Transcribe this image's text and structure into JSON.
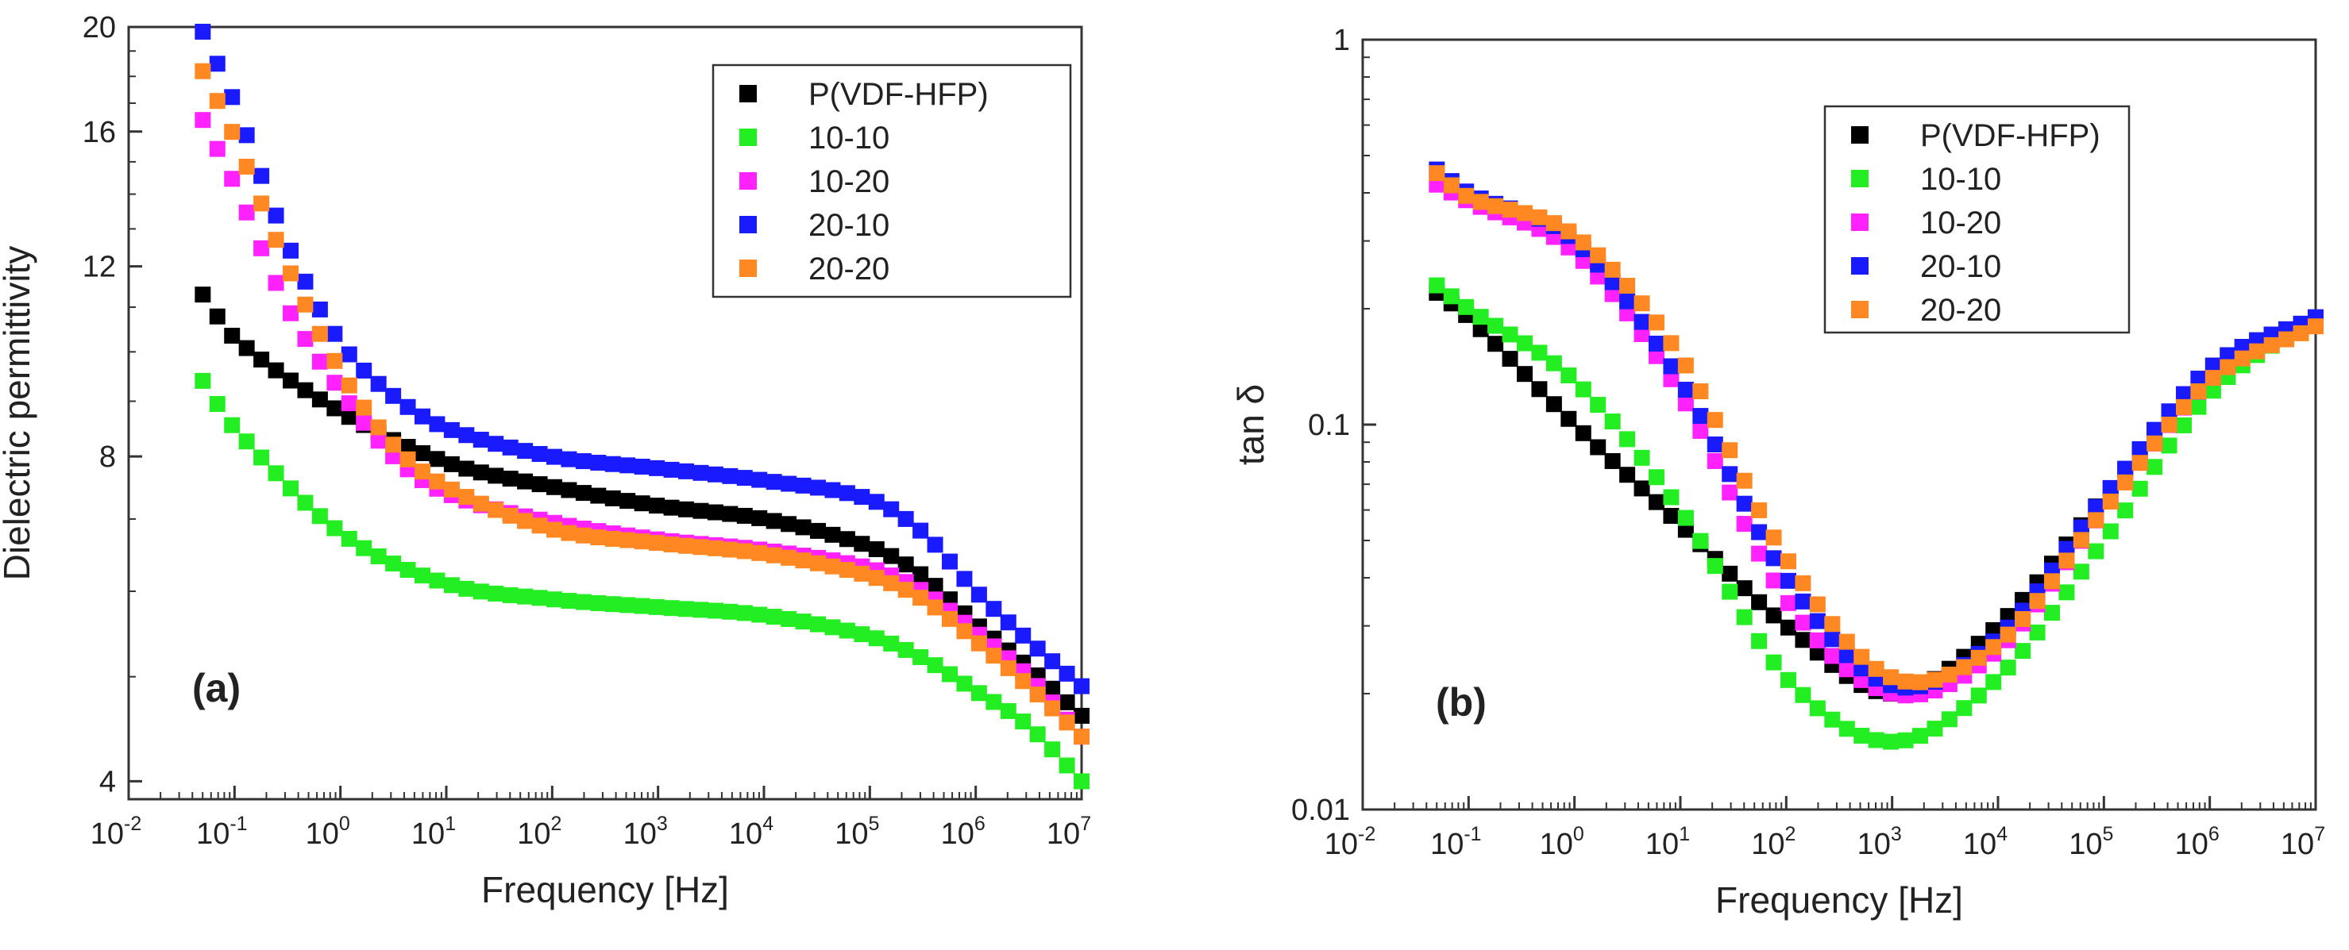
{
  "chart_data": [
    {
      "type": "scatter",
      "panel_label": "(a)",
      "xlabel": "Frequency [Hz]",
      "ylabel": "Dielectric permittivity",
      "x_scale": "log",
      "y_scale": "log",
      "xlim": [
        0.01,
        10000000
      ],
      "ylim": [
        3.85,
        20
      ],
      "x_ticks": [
        {
          "value": 0.01,
          "base": "10",
          "exp": "-2"
        },
        {
          "value": 0.1,
          "base": "10",
          "exp": "-1"
        },
        {
          "value": 1,
          "base": "10",
          "exp": "0"
        },
        {
          "value": 10,
          "base": "10",
          "exp": "1"
        },
        {
          "value": 100,
          "base": "10",
          "exp": "2"
        },
        {
          "value": 1000,
          "base": "10",
          "exp": "3"
        },
        {
          "value": 10000,
          "base": "10",
          "exp": "4"
        },
        {
          "value": 100000,
          "base": "10",
          "exp": "5"
        },
        {
          "value": 1000000,
          "base": "10",
          "exp": "6"
        },
        {
          "value": 10000000,
          "base": "10",
          "exp": "7"
        }
      ],
      "y_ticks": [
        {
          "value": 4,
          "label": "4"
        },
        {
          "value": 8,
          "label": "8"
        },
        {
          "value": 12,
          "label": "12"
        },
        {
          "value": 16,
          "label": "16"
        },
        {
          "value": 20,
          "label": "20"
        }
      ],
      "grid": false,
      "legend_position": "top-right",
      "series": [
        {
          "name": "P(VDF-HFP)",
          "color": "#000000",
          "x_decades": [
            -1.3,
            -1.0,
            0.0,
            1.0,
            2.0,
            3.0,
            4.0,
            5.0,
            5.5,
            6.0,
            6.5,
            7.0
          ],
          "values": [
            11.3,
            10.3,
            8.8,
            7.9,
            7.5,
            7.2,
            7.0,
            6.6,
            6.2,
            5.6,
            5.1,
            4.6
          ]
        },
        {
          "name": "10-10",
          "color": "#22ee22",
          "x_decades": [
            -1.3,
            -1.0,
            0.0,
            1.0,
            2.0,
            3.0,
            4.0,
            5.0,
            5.5,
            6.0,
            6.5,
            7.0
          ],
          "values": [
            9.4,
            8.5,
            6.8,
            6.1,
            5.9,
            5.8,
            5.7,
            5.45,
            5.2,
            4.85,
            4.5,
            4.0
          ]
        },
        {
          "name": "10-20",
          "color": "#ff22ff",
          "x_decades": [
            -1.3,
            -1.0,
            -0.5,
            0.0,
            0.5,
            1.0,
            2.0,
            3.0,
            4.0,
            5.0,
            5.5,
            6.0,
            6.5,
            7.0
          ],
          "values": [
            16.4,
            14.3,
            11.0,
            9.2,
            8.0,
            7.4,
            6.95,
            6.7,
            6.55,
            6.3,
            6.0,
            5.5,
            5.0,
            4.4
          ]
        },
        {
          "name": "20-10",
          "color": "#1a1aff",
          "x_decades": [
            -1.3,
            -1.0,
            -0.5,
            0.0,
            0.5,
            1.0,
            2.0,
            3.0,
            4.0,
            5.0,
            5.5,
            6.0,
            6.5,
            7.0
          ],
          "values": [
            19.8,
            17.0,
            12.6,
            10.2,
            9.1,
            8.5,
            8.0,
            7.8,
            7.6,
            7.3,
            6.8,
            6.0,
            5.4,
            4.9
          ]
        },
        {
          "name": "20-20",
          "color": "#ff8822",
          "x_decades": [
            -1.3,
            -1.0,
            -0.5,
            0.0,
            0.5,
            1.0,
            2.0,
            3.0,
            4.0,
            5.0,
            5.5,
            6.0,
            6.5,
            7.0
          ],
          "values": [
            18.2,
            15.8,
            12.0,
            9.6,
            8.2,
            7.5,
            6.85,
            6.65,
            6.5,
            6.2,
            5.9,
            5.4,
            4.9,
            4.4
          ]
        }
      ]
    },
    {
      "type": "scatter",
      "panel_label": "(b)",
      "xlabel": "Frequency [Hz]",
      "ylabel": "tan δ",
      "x_scale": "log",
      "y_scale": "log",
      "xlim": [
        0.01,
        10000000
      ],
      "ylim": [
        0.01,
        1
      ],
      "x_ticks": [
        {
          "value": 0.01,
          "base": "10",
          "exp": "-2"
        },
        {
          "value": 0.1,
          "base": "10",
          "exp": "-1"
        },
        {
          "value": 1,
          "base": "10",
          "exp": "0"
        },
        {
          "value": 10,
          "base": "10",
          "exp": "1"
        },
        {
          "value": 100,
          "base": "10",
          "exp": "2"
        },
        {
          "value": 1000,
          "base": "10",
          "exp": "3"
        },
        {
          "value": 10000,
          "base": "10",
          "exp": "4"
        },
        {
          "value": 100000,
          "base": "10",
          "exp": "5"
        },
        {
          "value": 1000000,
          "base": "10",
          "exp": "6"
        },
        {
          "value": 10000000,
          "base": "10",
          "exp": "7"
        }
      ],
      "y_ticks": [
        {
          "value": 0.01,
          "label": "0.01"
        },
        {
          "value": 0.1,
          "label": "0.1"
        },
        {
          "value": 1,
          "label": "1"
        }
      ],
      "grid": false,
      "legend_position": "top-center",
      "series": [
        {
          "name": "P(VDF-HFP)",
          "color": "#000000",
          "x_decades": [
            -1.3,
            -1.0,
            0.0,
            1.0,
            2.0,
            3.0,
            4.0,
            5.0,
            6.0,
            7.0
          ],
          "values": [
            0.22,
            0.19,
            0.1,
            0.055,
            0.03,
            0.02,
            0.03,
            0.065,
            0.14,
            0.19
          ]
        },
        {
          "name": "10-10",
          "color": "#22ee22",
          "x_decades": [
            -1.3,
            -1.0,
            0.0,
            1.0,
            2.0,
            3.0,
            4.0,
            5.0,
            6.0,
            7.0
          ],
          "values": [
            0.23,
            0.2,
            0.13,
            0.06,
            0.022,
            0.015,
            0.022,
            0.05,
            0.12,
            0.19
          ]
        },
        {
          "name": "10-20",
          "color": "#ff22ff",
          "x_decades": [
            -1.3,
            -1.0,
            0.0,
            1.0,
            2.0,
            3.0,
            4.0,
            5.0,
            6.0,
            7.0
          ],
          "values": [
            0.42,
            0.38,
            0.28,
            0.12,
            0.035,
            0.02,
            0.026,
            0.06,
            0.13,
            0.19
          ]
        },
        {
          "name": "20-10",
          "color": "#1a1aff",
          "x_decades": [
            -1.3,
            -1.0,
            0.0,
            1.0,
            2.0,
            3.0,
            4.0,
            5.0,
            6.0,
            7.0
          ],
          "values": [
            0.46,
            0.4,
            0.3,
            0.13,
            0.04,
            0.021,
            0.028,
            0.065,
            0.14,
            0.19
          ]
        },
        {
          "name": "20-20",
          "color": "#ff8822",
          "x_decades": [
            -1.3,
            -1.0,
            0.0,
            1.0,
            2.0,
            3.0,
            4.0,
            5.0,
            6.0,
            7.0
          ],
          "values": [
            0.45,
            0.39,
            0.31,
            0.15,
            0.045,
            0.022,
            0.027,
            0.06,
            0.13,
            0.18
          ]
        }
      ]
    }
  ]
}
